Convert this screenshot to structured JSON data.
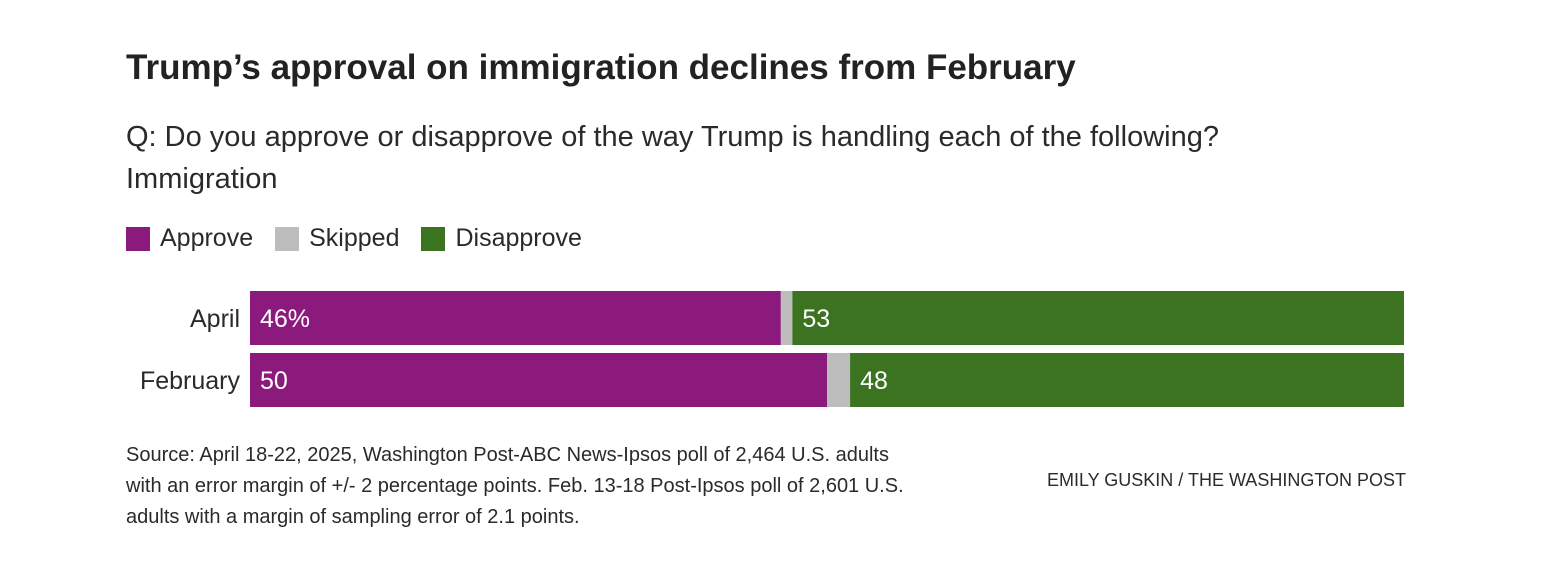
{
  "title": "Trump’s approval on immigration declines from February",
  "subtitle_line1": "Q: Do you approve or disapprove of the way Trump is handling each of the following?",
  "subtitle_line2": "Immigration",
  "legend": [
    {
      "label": "Approve",
      "color": "#8c1a7d"
    },
    {
      "label": "Skipped",
      "color": "#bdbdbd"
    },
    {
      "label": "Disapprove",
      "color": "#3b7321"
    }
  ],
  "chart_data": {
    "type": "bar",
    "orientation": "horizontal-stacked",
    "categories": [
      "April",
      "February"
    ],
    "series": [
      {
        "name": "Approve",
        "values": [
          46,
          50
        ],
        "labels": [
          "46%",
          "50"
        ],
        "color": "#8c1a7d"
      },
      {
        "name": "Skipped",
        "values": [
          1,
          2
        ],
        "labels": [
          "",
          ""
        ],
        "color": "#bdbdbd"
      },
      {
        "name": "Disapprove",
        "values": [
          53,
          48
        ],
        "labels": [
          "53",
          "48"
        ],
        "color": "#3b7321"
      }
    ],
    "xlim": [
      0,
      100
    ],
    "title": "Trump’s approval on immigration declines from February",
    "xlabel": "",
    "ylabel": ""
  },
  "source_lines": [
    "Source: April 18-22, 2025, Washington Post-ABC News-Ipsos poll of 2,464 U.S. adults",
    "with an error margin of +/- 2 percentage points. Feb. 13-18 Post-Ipsos poll of 2,601 U.S.",
    "adults with a margin of sampling error of 2.1 points."
  ],
  "credit": "EMILY GUSKIN / THE WASHINGTON POST"
}
